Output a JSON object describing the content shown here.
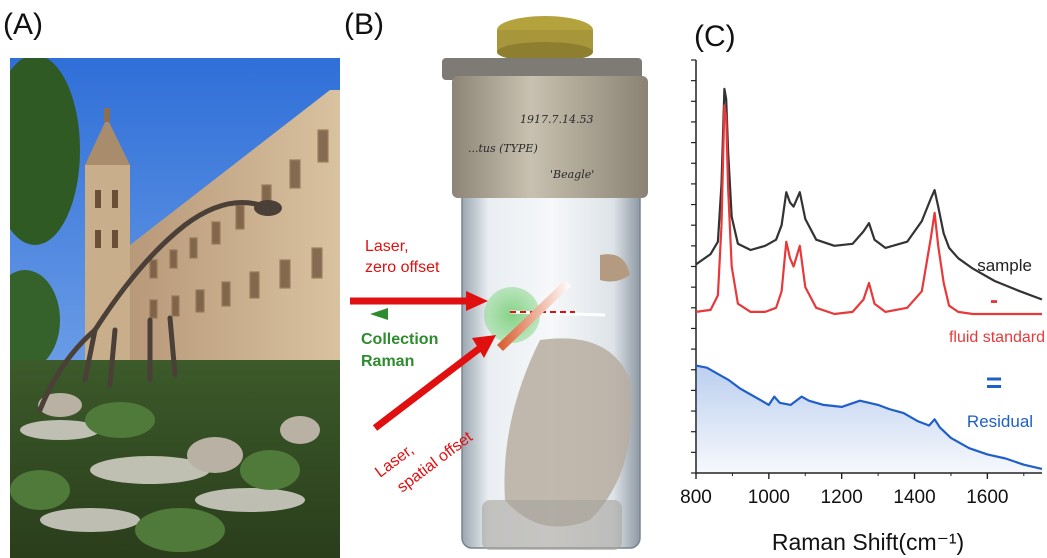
{
  "panels": {
    "a": "(A)",
    "b": "(B)",
    "c": "(C)"
  },
  "photo_b": {
    "jar_label_line1": "1917.7.14.53",
    "jar_label_line2": "...tus (TYPE)",
    "jar_label_line3": "'Beagle'",
    "laser_zero_1": "Laser,",
    "laser_zero_2": "zero offset",
    "collection_1": "Collection",
    "collection_2": "Raman",
    "laser_spatial_1": "Laser,",
    "laser_spatial_2": "spatial offset"
  },
  "colors": {
    "sample": "#333333",
    "standard": "#e8393a",
    "residual": "#1f5fc8",
    "collection": "#2e8b2e",
    "laser": "#e01010"
  },
  "chart_data": {
    "type": "line",
    "xlabel": "Raman Shift(cm⁻¹)",
    "xlim": [
      800,
      1750
    ],
    "xticks": [
      800,
      1000,
      1200,
      1400,
      1600
    ],
    "ylabel": "",
    "series": [
      {
        "name": "sample",
        "x": [
          800,
          840,
          860,
          870,
          878,
          883,
          888,
          898,
          915,
          950,
          990,
          1020,
          1035,
          1048,
          1058,
          1068,
          1085,
          1100,
          1130,
          1180,
          1230,
          1260,
          1275,
          1290,
          1320,
          1380,
          1420,
          1445,
          1455,
          1465,
          1480,
          1495,
          1520,
          1560,
          1620,
          1690,
          1750
        ],
        "y": [
          0.505,
          0.53,
          0.56,
          0.7,
          0.93,
          0.905,
          0.78,
          0.62,
          0.555,
          0.54,
          0.55,
          0.565,
          0.6,
          0.68,
          0.655,
          0.645,
          0.68,
          0.615,
          0.565,
          0.55,
          0.555,
          0.585,
          0.605,
          0.565,
          0.545,
          0.56,
          0.61,
          0.665,
          0.685,
          0.645,
          0.58,
          0.545,
          0.52,
          0.495,
          0.465,
          0.44,
          0.42
        ]
      },
      {
        "name": "fluid standard",
        "x": [
          800,
          840,
          860,
          870,
          878,
          883,
          888,
          898,
          915,
          950,
          990,
          1020,
          1035,
          1048,
          1058,
          1068,
          1085,
          1100,
          1130,
          1180,
          1230,
          1260,
          1275,
          1290,
          1320,
          1380,
          1420,
          1445,
          1455,
          1465,
          1480,
          1495,
          1520,
          1560,
          1620,
          1690,
          1750
        ],
        "y": [
          0.39,
          0.395,
          0.43,
          0.6,
          0.89,
          0.86,
          0.69,
          0.5,
          0.41,
          0.39,
          0.39,
          0.4,
          0.44,
          0.56,
          0.52,
          0.5,
          0.55,
          0.45,
          0.4,
          0.385,
          0.39,
          0.42,
          0.46,
          0.41,
          0.39,
          0.4,
          0.44,
          0.57,
          0.63,
          0.55,
          0.46,
          0.405,
          0.39,
          0.385,
          0.385,
          0.385,
          0.385
        ]
      },
      {
        "name": "Residual",
        "x": [
          800,
          830,
          860,
          890,
          920,
          950,
          980,
          1000,
          1015,
          1030,
          1060,
          1090,
          1110,
          1150,
          1200,
          1250,
          1300,
          1330,
          1370,
          1410,
          1440,
          1455,
          1470,
          1500,
          1550,
          1600,
          1650,
          1700,
          1750
        ],
        "y": [
          0.26,
          0.255,
          0.24,
          0.225,
          0.205,
          0.19,
          0.175,
          0.165,
          0.185,
          0.17,
          0.165,
          0.185,
          0.175,
          0.165,
          0.16,
          0.175,
          0.165,
          0.155,
          0.145,
          0.125,
          0.115,
          0.13,
          0.11,
          0.085,
          0.06,
          0.045,
          0.035,
          0.02,
          0.01
        ]
      }
    ],
    "annotations": {
      "minus": "-",
      "equals": "=",
      "sample_label": "sample",
      "standard_label": "fluid standard",
      "residual_label": "Residual"
    }
  }
}
